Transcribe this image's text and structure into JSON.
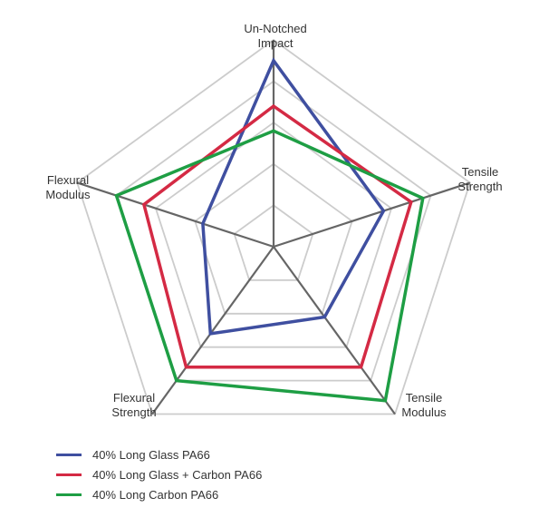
{
  "chart_data": {
    "type": "radar",
    "axes": [
      {
        "label_lines": [
          "Un-Notched",
          "Impact"
        ]
      },
      {
        "label_lines": [
          "Tensile",
          "Strength"
        ]
      },
      {
        "label_lines": [
          "Tensile",
          "Modulus"
        ]
      },
      {
        "label_lines": [
          "Flexural",
          "Strength"
        ]
      },
      {
        "label_lines": [
          "Flexural",
          "Modulus"
        ]
      }
    ],
    "rlim": [
      0,
      5
    ],
    "rings": 5,
    "series": [
      {
        "name": "40% Long Glass PA66",
        "color": "#3f4fa0",
        "values": [
          4.5,
          2.8,
          2.1,
          2.6,
          1.8
        ]
      },
      {
        "name": "40% Long Glass + Carbon PA66",
        "color": "#d42a44",
        "values": [
          3.4,
          3.5,
          3.6,
          3.6,
          3.3
        ]
      },
      {
        "name": "40% Long Carbon PA66",
        "color": "#1e9e44",
        "values": [
          2.8,
          3.8,
          4.6,
          4.0,
          4.0
        ]
      }
    ],
    "grid_color": "#cccccc",
    "spoke_color": "#666666"
  }
}
